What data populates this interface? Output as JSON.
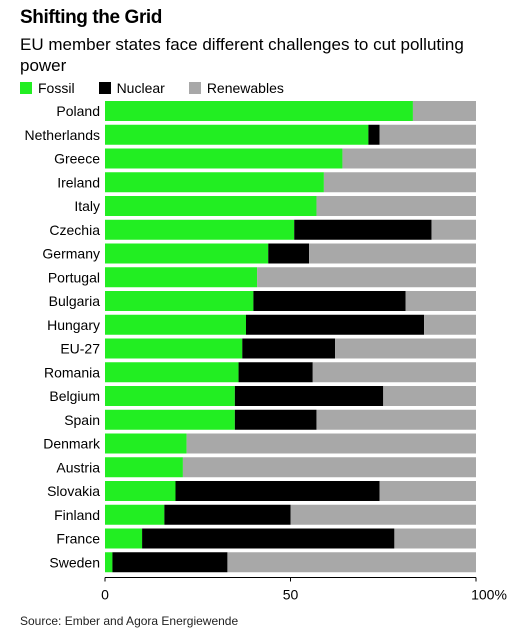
{
  "header": {
    "title": "Shifting the Grid",
    "subtitle": "EU member states face different challenges to cut polluting power"
  },
  "legend": [
    {
      "label": "Fossil",
      "color": "#22ee22"
    },
    {
      "label": "Nuclear",
      "color": "#000000"
    },
    {
      "label": "Renewables",
      "color": "#a8a8a8"
    }
  ],
  "chart_data": {
    "type": "bar",
    "orientation": "horizontal",
    "stacked": true,
    "categories": [
      "Poland",
      "Netherlands",
      "Greece",
      "Ireland",
      "Italy",
      "Czechia",
      "Germany",
      "Portugal",
      "Bulgaria",
      "Hungary",
      "EU-27",
      "Romania",
      "Belgium",
      "Spain",
      "Denmark",
      "Austria",
      "Slovakia",
      "Finland",
      "France",
      "Sweden"
    ],
    "series": [
      {
        "name": "Fossil",
        "color": "#22ee22",
        "values": [
          83,
          71,
          64,
          59,
          57,
          51,
          44,
          41,
          40,
          38,
          37,
          36,
          35,
          35,
          22,
          21,
          19,
          16,
          10,
          2
        ]
      },
      {
        "name": "Nuclear",
        "color": "#000000",
        "values": [
          0,
          3,
          0,
          0,
          0,
          37,
          11,
          0,
          41,
          48,
          25,
          20,
          40,
          22,
          0,
          0,
          55,
          34,
          68,
          31
        ]
      },
      {
        "name": "Renewables",
        "color": "#a8a8a8",
        "values": [
          17,
          26,
          36,
          41,
          43,
          12,
          45,
          59,
          19,
          14,
          38,
          44,
          25,
          43,
          78,
          79,
          26,
          50,
          22,
          67
        ]
      }
    ],
    "xlim": [
      0,
      100
    ],
    "xticks": [
      {
        "value": 0,
        "label": "0"
      },
      {
        "value": 50,
        "label": "50"
      },
      {
        "value": 100,
        "label": "100%"
      }
    ],
    "grid": false,
    "legend_position": "top-left"
  },
  "footer": {
    "source": "Source: Ember and Agora Energiewende"
  }
}
